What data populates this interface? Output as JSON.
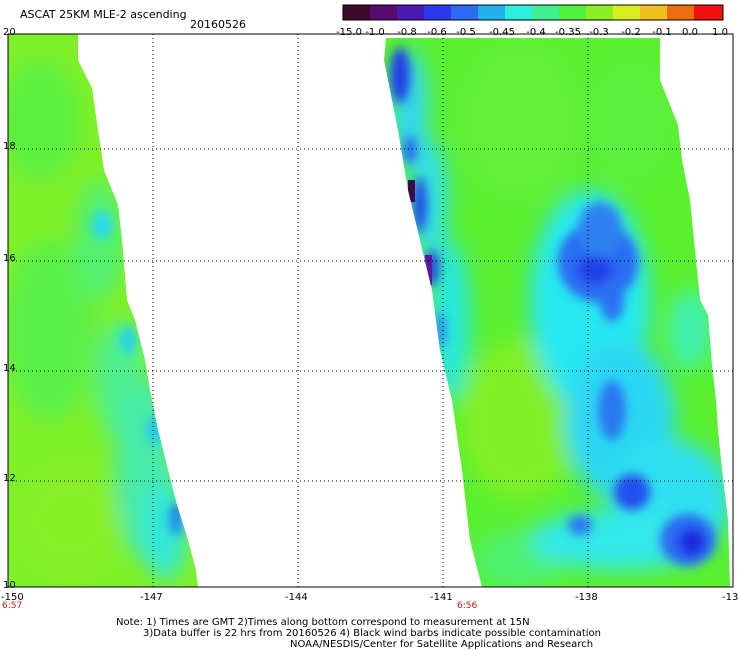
{
  "header": {
    "title": "ASCAT 25KM MLE-2 ascending",
    "date": "20160526"
  },
  "colorbar": {
    "labels": [
      "-15.0",
      "-1.0",
      "-0.8",
      "-0.6",
      "-0.5",
      "-0.45",
      "-0.4",
      "-0.35",
      "-0.3",
      "-0.2",
      "-0.1",
      "0.0",
      "1.0"
    ],
    "colors": [
      "#3a0a28",
      "#5a0a6e",
      "#4a1ab0",
      "#2a3aee",
      "#2f6af4",
      "#20b0f0",
      "#2af0e0",
      "#40f090",
      "#50f040",
      "#8aee20",
      "#d8f020",
      "#f0c020",
      "#f06a10",
      "#f01010"
    ]
  },
  "map": {
    "y_ticks": [
      "20",
      "18",
      "16",
      "14",
      "12",
      "10"
    ],
    "x_ticks": [
      "-150",
      "-147",
      "-144",
      "-141",
      "-138",
      "-13"
    ],
    "times": [
      "6:57",
      "6:56"
    ]
  },
  "notes": {
    "line1": "Note: 1) Times are GMT 2)Times along bottom correspond to measurement at 15N",
    "line2": "3)Data buffer is 22 hrs from 20160526 4) Black wind barbs indicate possible contamination",
    "line3": "NOAA/NESDIS/Center for Satellite Applications and Research"
  }
}
